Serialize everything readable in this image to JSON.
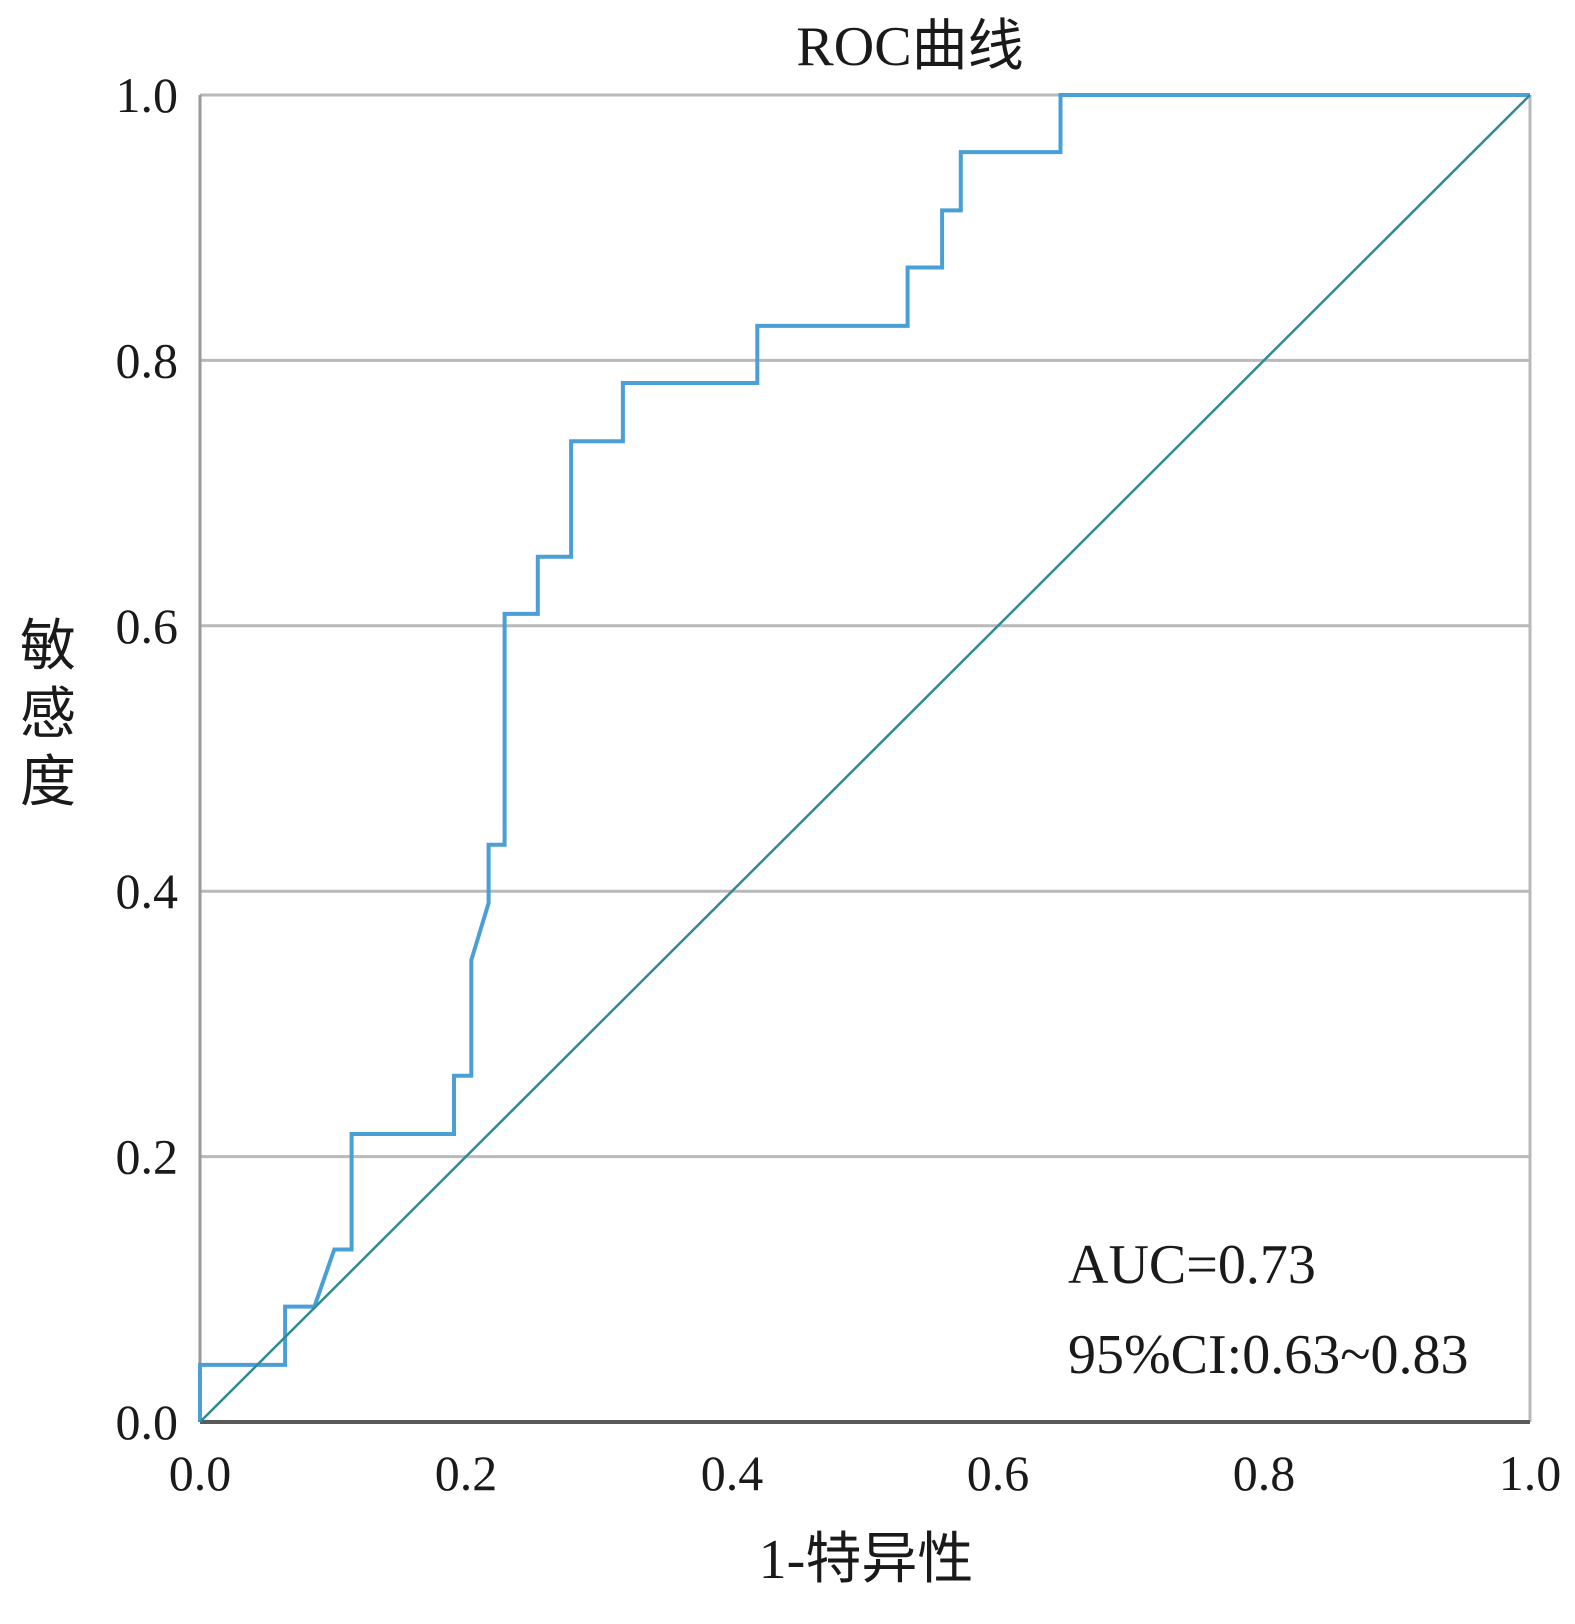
{
  "chart_data": {
    "type": "line",
    "title": "ROC曲线",
    "xlabel": "1-特异性",
    "ylabel": "敏感度",
    "xlim": [
      0,
      1
    ],
    "ylim": [
      0,
      1
    ],
    "x_ticks": [
      "0.0",
      "0.2",
      "0.4",
      "0.6",
      "0.8",
      "1.0"
    ],
    "y_ticks": [
      "0.0",
      "0.2",
      "0.4",
      "0.6",
      "0.8",
      "1.0"
    ],
    "grid": "horizontal",
    "annotations": [
      "AUC=0.73",
      "95%CI:0.63~0.83"
    ],
    "colors": {
      "roc": "#4a9fd6",
      "reference": "#2f8a93",
      "grid": "#b9b9b9"
    },
    "series": [
      {
        "id": "roc",
        "x": [
          0.0,
          0.0,
          0.064,
          0.064,
          0.086,
          0.101,
          0.114,
          0.114,
          0.191,
          0.191,
          0.204,
          0.204,
          0.217,
          0.217,
          0.229,
          0.229,
          0.254,
          0.254,
          0.279,
          0.279,
          0.318,
          0.318,
          0.419,
          0.419,
          0.532,
          0.532,
          0.558,
          0.558,
          0.572,
          0.572,
          0.647,
          0.647,
          1.0
        ],
        "y": [
          0.0,
          0.043,
          0.043,
          0.087,
          0.087,
          0.13,
          0.13,
          0.217,
          0.217,
          0.261,
          0.261,
          0.348,
          0.391,
          0.435,
          0.435,
          0.609,
          0.609,
          0.652,
          0.652,
          0.739,
          0.739,
          0.783,
          0.783,
          0.826,
          0.826,
          0.87,
          0.87,
          0.913,
          0.913,
          0.957,
          0.957,
          1.0,
          1.0
        ]
      },
      {
        "id": "reference",
        "x": [
          0,
          1
        ],
        "y": [
          0,
          1
        ]
      }
    ]
  }
}
